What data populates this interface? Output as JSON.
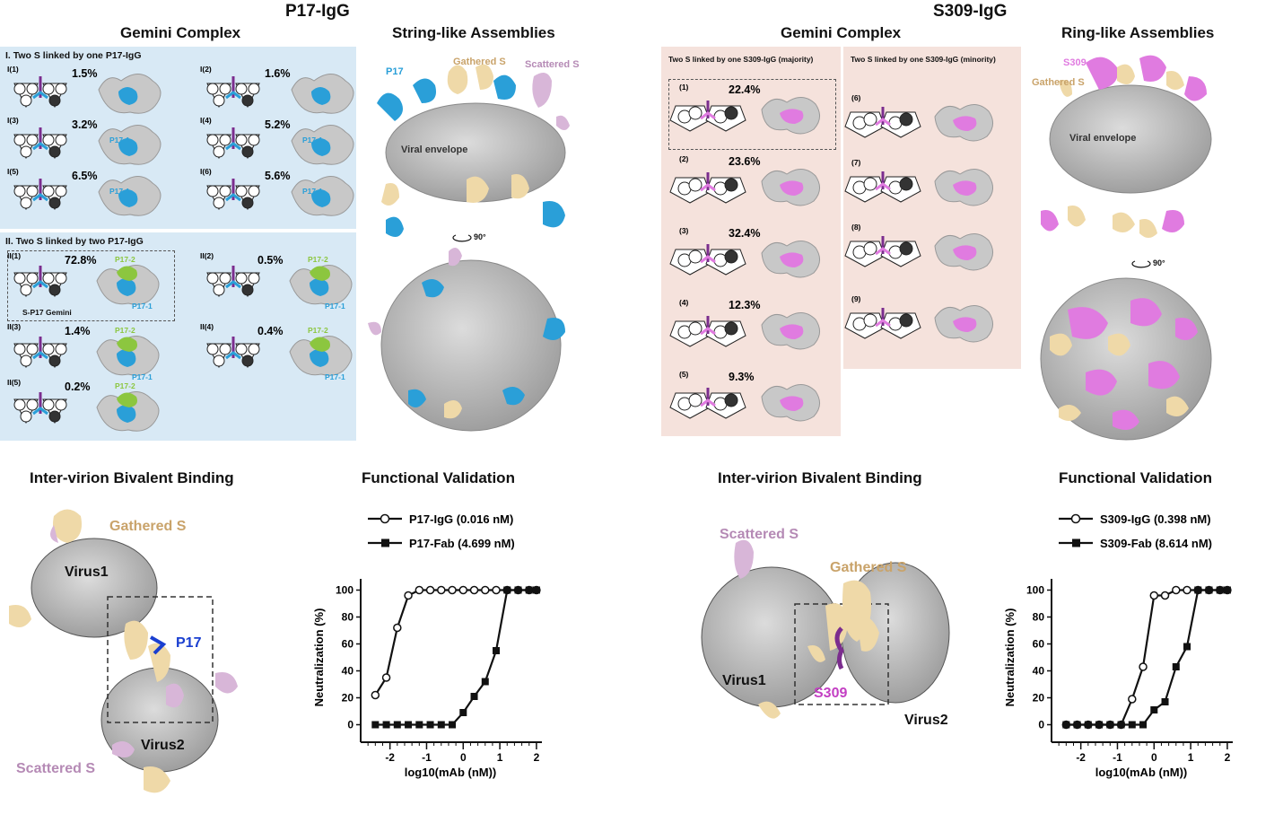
{
  "titles": {
    "left": "P17-IgG",
    "right": "S309-IgG"
  },
  "p17": {
    "gemini_title": "Gemini Complex",
    "string_title": "String-like Assemblies",
    "group1_title": "I. Two S linked by one P17-IgG",
    "group2_title": "II. Two S linked by two P17-IgG",
    "group1": [
      {
        "id": "I(1)",
        "pct": "1.5%",
        "tag": ""
      },
      {
        "id": "I(2)",
        "pct": "1.6%",
        "tag": ""
      },
      {
        "id": "I(3)",
        "pct": "3.2%",
        "tag": "P17-1"
      },
      {
        "id": "I(4)",
        "pct": "5.2%",
        "tag": "P17-1"
      },
      {
        "id": "I(5)",
        "pct": "6.5%",
        "tag": "P17-1"
      },
      {
        "id": "I(6)",
        "pct": "5.6%",
        "tag": "P17-1"
      }
    ],
    "group2": [
      {
        "id": "II(1)",
        "pct": "72.8%",
        "tag1": "P17-2",
        "tag2": "P17-1"
      },
      {
        "id": "II(2)",
        "pct": "0.5%",
        "tag1": "P17-2",
        "tag2": "P17-1"
      },
      {
        "id": "II(3)",
        "pct": "1.4%",
        "tag1": "P17-2",
        "tag2": "P17-1"
      },
      {
        "id": "II(4)",
        "pct": "0.4%",
        "tag1": "P17-2",
        "tag2": "P17-1"
      },
      {
        "id": "II(5)",
        "pct": "0.2%",
        "tag1": "P17-2",
        "tag2": ""
      }
    ],
    "gemini_label": "S-P17 Gemini",
    "assembly_labels": {
      "antibody": "P17",
      "gathered": "Gathered S",
      "scattered": "Scattered S",
      "envelope": "Viral envelope",
      "rotate": "90°"
    }
  },
  "s309": {
    "gemini_title": "Gemini Complex",
    "ring_title": "Ring-like Assemblies",
    "majority_title": "Two S linked by one S309-IgG (majority)",
    "minority_title": "Two S linked by one S309-IgG (minority)",
    "majority": [
      {
        "id": "(1)",
        "pct": "22.4%"
      },
      {
        "id": "(2)",
        "pct": "23.6%"
      },
      {
        "id": "(3)",
        "pct": "32.4%"
      },
      {
        "id": "(4)",
        "pct": "12.3%"
      },
      {
        "id": "(5)",
        "pct": "9.3%"
      }
    ],
    "minority": [
      {
        "id": "(6)"
      },
      {
        "id": "(7)"
      },
      {
        "id": "(8)"
      },
      {
        "id": "(9)"
      }
    ],
    "assembly_labels": {
      "antibody": "S309",
      "gathered": "Gathered S",
      "envelope": "Viral envelope",
      "rotate": "90°"
    }
  },
  "intervirion": {
    "title": "Inter-virion Bivalent Binding",
    "left": {
      "gathered": "Gathered S",
      "scattered": "Scattered S",
      "virus1": "Virus1",
      "virus2": "Virus2",
      "antibody": "P17"
    },
    "right": {
      "gathered": "Gathered S",
      "scattered": "Scattered S",
      "virus1": "Virus1",
      "virus2": "Virus2",
      "antibody": "S309"
    }
  },
  "functional": {
    "title": "Functional Validation"
  },
  "colors": {
    "p17": "#2a9fd8",
    "p17_2": "#8cc63f",
    "s309": "#e07be0",
    "gathered": "#efd9a8",
    "scattered": "#d8b6d8",
    "virus": "#c9c9c9",
    "purple": "#7b2d8e"
  },
  "chart_data": [
    {
      "type": "line",
      "xlabel": "log10(mAb (nM))",
      "ylabel": "Neutralization (%)",
      "xlim": [
        -2.8,
        2.1
      ],
      "ylim": [
        -5,
        105
      ],
      "xticks": [
        -2,
        -1,
        0,
        1,
        2
      ],
      "yticks": [
        0,
        20,
        40,
        60,
        80,
        100
      ],
      "series": [
        {
          "name": "P17-IgG (0.016 nM)",
          "marker": "open-circle",
          "x": [
            -2.4,
            -2.1,
            -1.8,
            -1.5,
            -1.2,
            -0.9,
            -0.6,
            -0.3,
            0.0,
            0.3,
            0.6,
            0.9,
            1.2,
            1.5,
            1.8,
            2.0
          ],
          "y": [
            22,
            35,
            72,
            96,
            100,
            100,
            100,
            100,
            100,
            100,
            100,
            100,
            100,
            100,
            100,
            100
          ]
        },
        {
          "name": "P17-Fab (4.699 nM)",
          "marker": "filled-square",
          "x": [
            -2.4,
            -2.1,
            -1.8,
            -1.5,
            -1.2,
            -0.9,
            -0.6,
            -0.3,
            0.0,
            0.3,
            0.6,
            0.9,
            1.2,
            1.5,
            1.8,
            2.0
          ],
          "y": [
            0,
            0,
            0,
            0,
            0,
            0,
            0,
            0,
            9,
            21,
            32,
            55,
            100,
            100,
            100,
            100
          ]
        }
      ]
    },
    {
      "type": "line",
      "xlabel": "log10(mAb (nM))",
      "ylabel": "Neutralization (%)",
      "xlim": [
        -2.8,
        2.1
      ],
      "ylim": [
        -5,
        105
      ],
      "xticks": [
        -2,
        -1,
        0,
        1,
        2
      ],
      "yticks": [
        0,
        20,
        40,
        60,
        80,
        100
      ],
      "series": [
        {
          "name": "S309-IgG (0.398 nM)",
          "marker": "open-circle",
          "x": [
            -2.4,
            -2.1,
            -1.8,
            -1.5,
            -1.2,
            -0.9,
            -0.6,
            -0.3,
            0.0,
            0.3,
            0.6,
            0.9,
            1.2,
            1.5,
            1.8,
            2.0
          ],
          "y": [
            0,
            0,
            0,
            0,
            0,
            0,
            19,
            43,
            96,
            96,
            100,
            100,
            100,
            100,
            100,
            100
          ]
        },
        {
          "name": "S309-Fab (8.614 nM)",
          "marker": "filled-square",
          "x": [
            -2.4,
            -2.1,
            -1.8,
            -1.5,
            -1.2,
            -0.9,
            -0.6,
            -0.3,
            0.0,
            0.3,
            0.6,
            0.9,
            1.2,
            1.5,
            1.8,
            2.0
          ],
          "y": [
            0,
            0,
            0,
            0,
            0,
            0,
            0,
            0,
            11,
            17,
            43,
            58,
            100,
            100,
            100,
            100
          ]
        }
      ]
    }
  ]
}
